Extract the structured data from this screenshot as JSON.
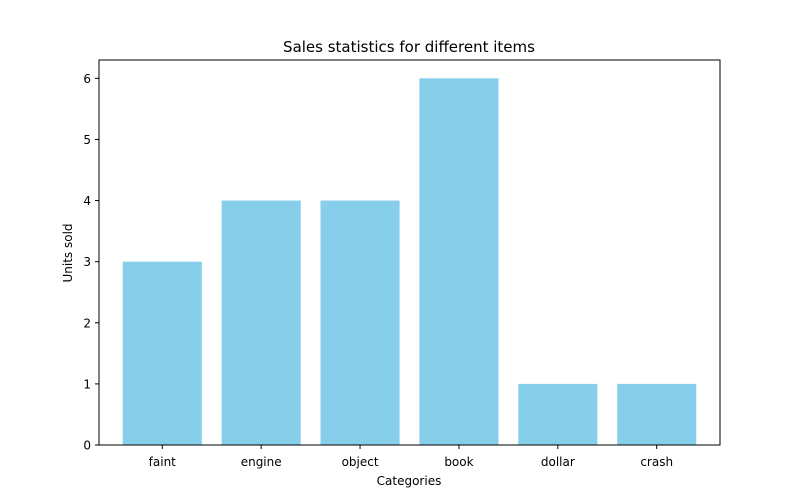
{
  "chart_data": {
    "type": "bar",
    "title": "Sales statistics for different items",
    "xlabel": "Categories",
    "ylabel": "Units sold",
    "categories": [
      "faint",
      "engine",
      "object",
      "book",
      "dollar",
      "crash"
    ],
    "values": [
      3,
      4,
      4,
      6,
      1,
      1
    ],
    "ylim": [
      0,
      6.3
    ],
    "yticks": [
      "0",
      "1",
      "2",
      "3",
      "4",
      "5",
      "6"
    ],
    "bar_color": "#87CEEB",
    "grid": false,
    "legend": "none"
  }
}
